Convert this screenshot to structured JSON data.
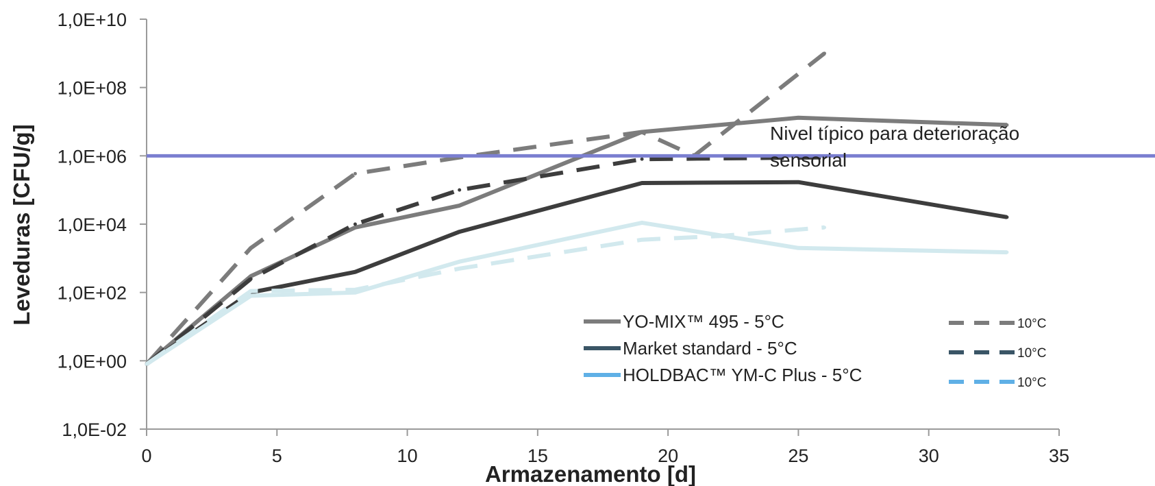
{
  "chart_data": {
    "type": "line",
    "title": "",
    "xlabel": "Armazenamento [d]",
    "ylabel": "Leveduras [CFU/g]",
    "xlim": [
      0,
      35
    ],
    "x_ticks": [
      0,
      5,
      10,
      15,
      20,
      25,
      30,
      35
    ],
    "y_scale": "log",
    "ylim": [
      0.01,
      10000000000
    ],
    "y_ticks": [
      {
        "value": 0.01,
        "label": "1,0E-02"
      },
      {
        "value": 1,
        "label": "1,0E+00"
      },
      {
        "value": 100,
        "label": "1,0E+02"
      },
      {
        "value": 10000,
        "label": "1,0E+04"
      },
      {
        "value": 1000000,
        "label": "1,0E+06"
      },
      {
        "value": 100000000,
        "label": "1,0E+08"
      },
      {
        "value": 10000000000,
        "label": "1,0E+10"
      }
    ],
    "grid": false,
    "legend_position": "bottom-right (inside plot)",
    "reference_line": {
      "y": 1000000,
      "label": "Nivel típico para deterioração sensorial",
      "color": "#7b7fd0"
    },
    "series": [
      {
        "name": "YO-MIX™ 495 - 5°C",
        "legend_swatch_color": "#7c7c7c",
        "color": "#7c7c7c",
        "style": "solid",
        "x": [
          0,
          4,
          8,
          12,
          19,
          25,
          33
        ],
        "y": [
          0.8,
          300,
          8000,
          35000,
          5000000,
          13000000,
          8000000
        ]
      },
      {
        "name": "Market standard - 5°C",
        "legend_swatch_color": "#3a5566",
        "color": "#3d3d3d",
        "style": "solid",
        "x": [
          0,
          4,
          8,
          12,
          19,
          25,
          33
        ],
        "y": [
          0.8,
          100,
          400,
          6000,
          160000,
          170000,
          16000
        ]
      },
      {
        "name": "HOLDBAC™ YM-C Plus - 5°C",
        "legend_swatch_color": "#5fb0e6",
        "color": "#d2e9ee",
        "style": "solid",
        "x": [
          0,
          4,
          8,
          12,
          19,
          25,
          33
        ],
        "y": [
          0.8,
          80,
          100,
          800,
          11000,
          2000,
          1500
        ]
      },
      {
        "name": "10°C",
        "legend_swatch_color": "#7c7c7c",
        "color": "#7c7c7c",
        "style": "dashed",
        "x": [
          0,
          4,
          8,
          12,
          19,
          21,
          26
        ],
        "y": [
          0.8,
          2000,
          300000,
          900000,
          5000000,
          1000000,
          1000000000
        ]
      },
      {
        "name": "10°C",
        "legend_swatch_color": "#3a5566",
        "color": "#3d3d3d",
        "style": "dashed",
        "x": [
          0,
          4,
          8,
          12,
          19,
          26
        ],
        "y": [
          0.8,
          250,
          10000,
          100000,
          800000,
          900000
        ]
      },
      {
        "name": "10°C",
        "legend_swatch_color": "#5fb0e6",
        "color": "#d2e9ee",
        "style": "dashed",
        "x": [
          0,
          4,
          8,
          12,
          19,
          22,
          26
        ],
        "y": [
          0.8,
          110,
          120,
          500,
          3500,
          4500,
          8000
        ]
      }
    ]
  }
}
